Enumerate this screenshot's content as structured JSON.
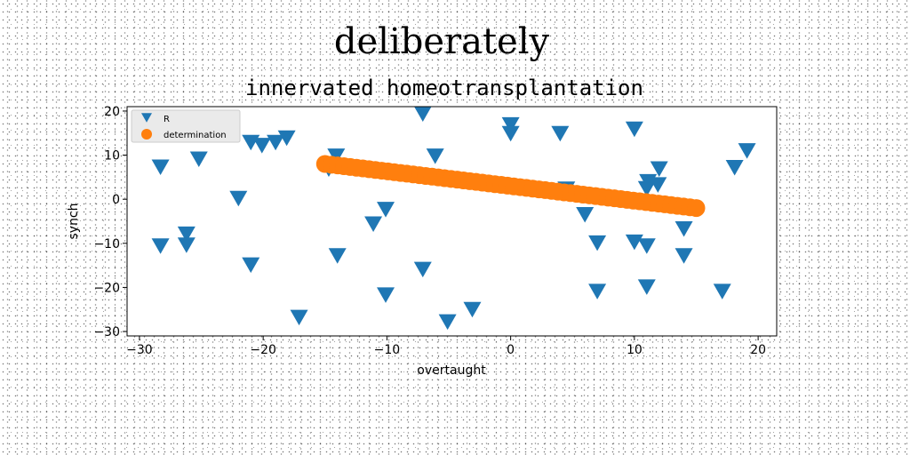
{
  "chart_data": {
    "type": "scatter",
    "title": "deliberately",
    "subtitle": "innervated homeotransplantation",
    "xlabel": "overtaught",
    "ylabel": "synch",
    "xlim": [
      -31,
      21.5
    ],
    "ylim": [
      -31,
      21
    ],
    "xticks": [
      -30,
      -20,
      -10,
      0,
      10,
      20
    ],
    "yticks": [
      -30,
      -20,
      -10,
      0,
      10,
      20
    ],
    "xtick_labels": [
      "−30",
      "−20",
      "−10",
      "0",
      "10",
      "20"
    ],
    "ytick_labels": [
      "−30",
      "−20",
      "−10",
      "0",
      "10",
      "20"
    ],
    "grid": false,
    "legend_position": "top-left",
    "series": [
      {
        "name": "R",
        "marker": "triangle-down",
        "color": "#1f77b4",
        "points": [
          [
            -28.3,
            7.4
          ],
          [
            -28.3,
            -10.5
          ],
          [
            -26.2,
            -7.8
          ],
          [
            -26.2,
            -10.3
          ],
          [
            -25.2,
            9.2
          ],
          [
            -22,
            0.3
          ],
          [
            -21,
            -14.8
          ],
          [
            -21,
            13
          ],
          [
            -20.1,
            12.3
          ],
          [
            -19,
            13
          ],
          [
            -18.1,
            14
          ],
          [
            -17.1,
            -26.7
          ],
          [
            -14.1,
            9.9
          ],
          [
            -14.7,
            7
          ],
          [
            -14,
            -12.7
          ],
          [
            -11.1,
            -5.5
          ],
          [
            -10.1,
            -2.2
          ],
          [
            -10.1,
            -21.6
          ],
          [
            -7.1,
            19.5
          ],
          [
            -7.1,
            -15.8
          ],
          [
            -6.1,
            9.9
          ],
          [
            -5.1,
            -27.7
          ],
          [
            -3.1,
            -24.9
          ],
          [
            0,
            17
          ],
          [
            0,
            15
          ],
          [
            4,
            15
          ],
          [
            4.5,
            2.4
          ],
          [
            6,
            -3.4
          ],
          [
            7,
            -9.8
          ],
          [
            7,
            -20.8
          ],
          [
            10,
            16
          ],
          [
            10,
            -9.6
          ],
          [
            11,
            -10.5
          ],
          [
            11,
            -19.8
          ],
          [
            11,
            2.5
          ],
          [
            11.1,
            4.1
          ],
          [
            11.9,
            3.4
          ],
          [
            12,
            7
          ],
          [
            14,
            -6.6
          ],
          [
            14,
            -12.7
          ],
          [
            17.1,
            -20.8
          ],
          [
            18.1,
            7.3
          ],
          [
            19.1,
            11.1
          ]
        ]
      },
      {
        "name": "determination",
        "marker": "circle",
        "color": "#ff7f0e",
        "x_range": [
          -15,
          15
        ],
        "y_range": [
          8,
          -2
        ],
        "n_points": 60
      }
    ]
  }
}
